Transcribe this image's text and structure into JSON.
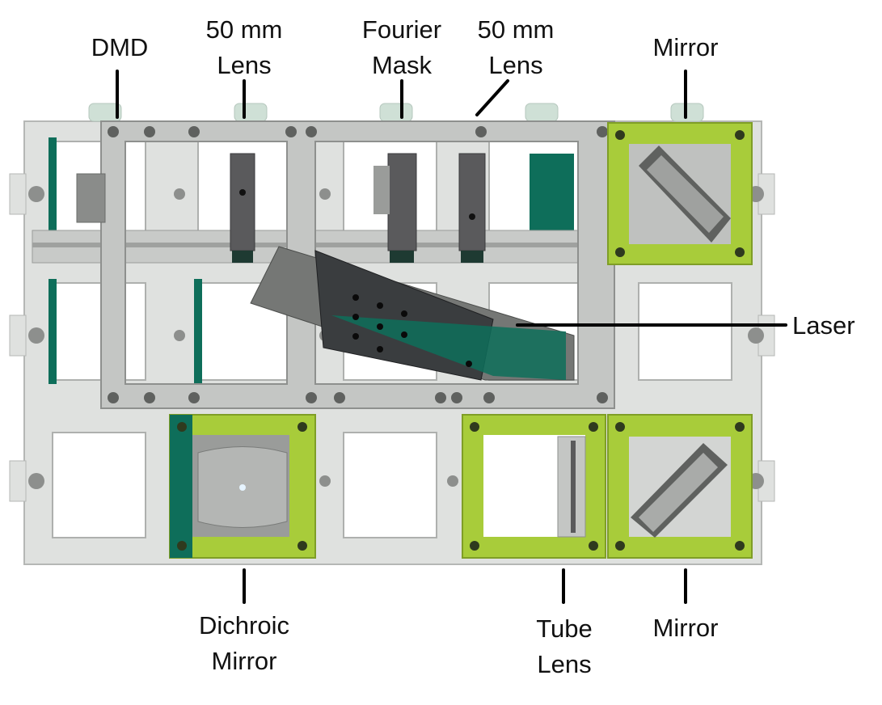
{
  "labels": {
    "dmd": "DMD",
    "lens1": [
      "50 mm",
      "Lens"
    ],
    "fourier": [
      "Fourier",
      "Mask"
    ],
    "lens2": [
      "50 mm",
      "Lens"
    ],
    "mirror_top": "Mirror",
    "laser": "Laser",
    "dichroic": [
      "Dichroic",
      "Mirror"
    ],
    "tube_lens": [
      "Tube",
      "Lens"
    ],
    "mirror_bottom": "Mirror"
  },
  "colors": {
    "plate": "#d3d5d3",
    "plate_dark": "#a9aba9",
    "frame": "#c2c4c2",
    "green_cube": "#a8cc3a",
    "green_cube_dark": "#86a82a",
    "teal": "#0e6e5a",
    "lens_holder": "#5a5a5c",
    "laser_body": "#3a3d3f"
  }
}
